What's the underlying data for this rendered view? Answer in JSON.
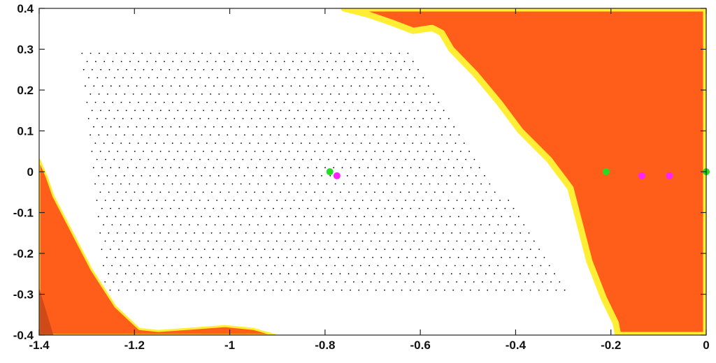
{
  "chart_data": {
    "type": "scatter",
    "title": "",
    "xlabel": "",
    "ylabel": "",
    "xlim": [
      -1.4,
      0
    ],
    "ylim": [
      -0.4,
      0.4
    ],
    "grid": false,
    "legend": "none",
    "x_ticks": [
      -1.4,
      -1.2,
      -1,
      -0.8,
      -0.6,
      -0.4,
      -0.2,
      0
    ],
    "y_ticks": [
      0.4,
      0.3,
      0.2,
      0.1,
      0,
      -0.1,
      -0.2,
      -0.3,
      -0.4
    ],
    "x_tick_labels": [
      "-1.4",
      "-1.2",
      "-1",
      "-0.8",
      "-0.6",
      "-0.4",
      "-0.2",
      "0"
    ],
    "y_tick_labels": [
      "0.4",
      "0.3",
      "0.2",
      "0.1",
      "0",
      "-0.1",
      "-0.2",
      "-0.3",
      "-0.4"
    ],
    "colors": {
      "region_fill": "#ff5e1a",
      "region_edge": "#ffee33",
      "dot": "#000000",
      "green_point": "#22dd22",
      "magenta_point": "#ff22ff",
      "corner_shade": "#c0441a"
    },
    "regions": [
      {
        "name": "right-region",
        "polygon": [
          [
            -0.76,
            0.4
          ],
          [
            0,
            0.4
          ],
          [
            0,
            -0.4
          ],
          [
            -0.185,
            -0.4
          ],
          [
            -0.19,
            -0.37
          ],
          [
            -0.215,
            -0.31
          ],
          [
            -0.245,
            -0.22
          ],
          [
            -0.265,
            -0.13
          ],
          [
            -0.285,
            -0.04
          ],
          [
            -0.33,
            0.03
          ],
          [
            -0.39,
            0.1
          ],
          [
            -0.435,
            0.17
          ],
          [
            -0.485,
            0.24
          ],
          [
            -0.535,
            0.3
          ],
          [
            -0.555,
            0.34
          ],
          [
            -0.575,
            0.352
          ],
          [
            -0.615,
            0.345
          ],
          [
            -0.66,
            0.365
          ],
          [
            -0.71,
            0.385
          ]
        ]
      },
      {
        "name": "left-region",
        "polygon": [
          [
            -1.4,
            0.03
          ],
          [
            -1.4,
            -0.4
          ],
          [
            -0.905,
            -0.4
          ],
          [
            -0.95,
            -0.385
          ],
          [
            -1.01,
            -0.378
          ],
          [
            -1.09,
            -0.385
          ],
          [
            -1.15,
            -0.39
          ],
          [
            -1.19,
            -0.385
          ],
          [
            -1.24,
            -0.33
          ],
          [
            -1.29,
            -0.24
          ],
          [
            -1.33,
            -0.15
          ],
          [
            -1.37,
            -0.06
          ],
          [
            -1.385,
            -0.01
          ]
        ]
      }
    ],
    "dot_grid": {
      "x_spacing": 0.018,
      "y_spacing": 0.02,
      "y_range": [
        -0.29,
        0.29
      ],
      "x_left_at_top": -1.31,
      "x_left_at_bottom": -1.26,
      "x_right_at_top": -0.625,
      "x_right_at_bottom": -0.285
    },
    "series": [
      {
        "color": "green",
        "x": [
          -0.79,
          -0.21,
          0.0
        ],
        "y": [
          0.0,
          0.0,
          0.0
        ]
      },
      {
        "color": "magenta",
        "x": [
          -0.775,
          -0.135,
          -0.077
        ],
        "y": [
          -0.01,
          -0.01,
          -0.01
        ]
      }
    ]
  }
}
